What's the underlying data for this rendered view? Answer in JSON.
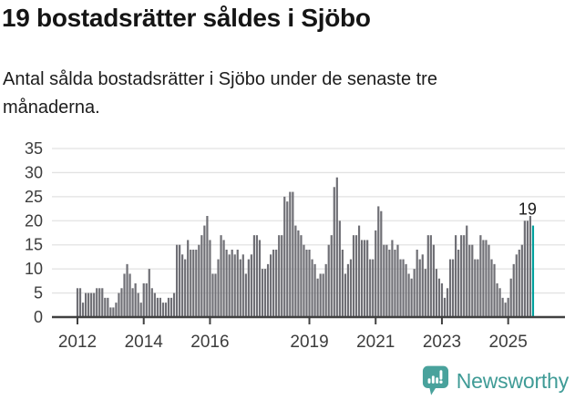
{
  "header": {
    "title": "19 bostadsrätter såldes i Sjöbo",
    "subtitle": "Antal sålda bostadsrätter i Sjöbo under de senaste tre månaderna."
  },
  "chart_data": {
    "type": "bar",
    "title": "19 bostadsrätter såldes i Sjöbo",
    "xlabel": "",
    "ylabel": "",
    "ylim": [
      0,
      35
    ],
    "yticks": [
      0,
      5,
      10,
      15,
      20,
      25,
      30,
      35
    ],
    "grid": "horizontal",
    "legend": "none",
    "bar_color": "#6f6f75",
    "highlight_color": "#00a09d",
    "axis_color": "#414141",
    "gridline_color": "#e2e2e2",
    "tick_label_color": "#3d3d3d",
    "x_unit": "month",
    "x_start": "2012-01",
    "x_end": "2025-10",
    "xticks": [
      {
        "label": "2012",
        "month_index": 0
      },
      {
        "label": "2014",
        "month_index": 24
      },
      {
        "label": "2016",
        "month_index": 48
      },
      {
        "label": "2019",
        "month_index": 84
      },
      {
        "label": "2021",
        "month_index": 108
      },
      {
        "label": "2023",
        "month_index": 132
      },
      {
        "label": "2025",
        "month_index": 156
      }
    ],
    "series": [
      {
        "name": "Antal sålda bostadsrätter, rullande 3 månader",
        "values": [
          6,
          6,
          3,
          5,
          5,
          5,
          5,
          6,
          6,
          6,
          4,
          4,
          2,
          2,
          3,
          5,
          6,
          9,
          11,
          9,
          6,
          7,
          5,
          3,
          7,
          7,
          10,
          6,
          5,
          4,
          4,
          3,
          3,
          4,
          4,
          5,
          15,
          15,
          13,
          12,
          16,
          14,
          14,
          14,
          15,
          17,
          19,
          21,
          16,
          9,
          9,
          12,
          17,
          16,
          14,
          13,
          14,
          13,
          14,
          12,
          13,
          9,
          12,
          13,
          17,
          17,
          16,
          10,
          10,
          11,
          13,
          14,
          14,
          17,
          17,
          25,
          24,
          26,
          26,
          19,
          18,
          17,
          15,
          14,
          14,
          12,
          11,
          8,
          9,
          9,
          11,
          15,
          17,
          27,
          29,
          20,
          14,
          9,
          11,
          12,
          17,
          17,
          19,
          16,
          16,
          16,
          12,
          12,
          18,
          23,
          22,
          15,
          15,
          14,
          16,
          14,
          15,
          12,
          12,
          11,
          9,
          8,
          10,
          14,
          12,
          13,
          10,
          17,
          17,
          15,
          10,
          8,
          7,
          4,
          6,
          12,
          12,
          17,
          14,
          17,
          17,
          19,
          15,
          15,
          12,
          12,
          17,
          16,
          16,
          15,
          12,
          11,
          7,
          6,
          4,
          3,
          4,
          8,
          11,
          13,
          14,
          15,
          20,
          20,
          21,
          19
        ]
      }
    ],
    "highlight_last_bar": true,
    "last_value_label": "19"
  },
  "footer": {
    "brand_name": "Newsworthy",
    "brand_color": "#3f9b96"
  }
}
